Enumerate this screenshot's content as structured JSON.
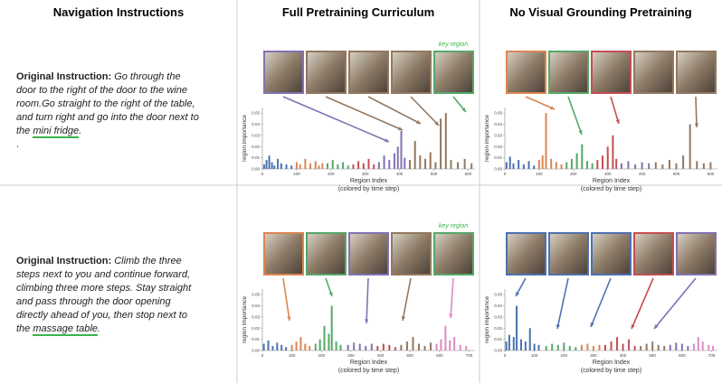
{
  "headers": [
    "Navigation Instructions",
    "Full Pretraining Curriculum",
    "No Visual Grounding Pretraining"
  ],
  "instructions": [
    {
      "label": "Original Instruction:",
      "text": "Go through the door to the right of the door to the wine room.Go straight to the right of the table, and turn right and go into the door next to the",
      "highlight": "mini fridge",
      "after": ".",
      "extra": "."
    },
    {
      "label": "Original Instruction:",
      "text": "Climb the three steps next to you and continue forward, climbing three more steps. Stay straight and pass through the door opening directly ahead of you, then stop next to the",
      "highlight": "massage table",
      "after": "."
    }
  ],
  "chart_data": [
    {
      "type": "bar",
      "ylabel": "region importance",
      "xlabel": "Region Index",
      "xlabel_note": "(colored by time step)",
      "annotation": "key region",
      "xlim": [
        0,
        620
      ],
      "xticks": [
        0,
        100,
        200,
        300,
        400,
        500,
        600
      ],
      "ylim": [
        0,
        0.055
      ],
      "yticks": [
        {
          "value": 0,
          "label": "0.00"
        },
        {
          "value": 0.01,
          "label": "0.01"
        },
        {
          "value": 0.02,
          "label": "0.02"
        },
        {
          "value": 0.03,
          "label": "0.03"
        },
        {
          "value": 0.04,
          "label": "0.04"
        },
        {
          "value": 0.05,
          "label": "0.05"
        }
      ],
      "series": [
        {
          "color": "#4c72b0",
          "x": [
            5,
            12,
            20,
            28,
            35,
            45,
            55,
            70,
            85
          ],
          "values": [
            0.004,
            0.008,
            0.012,
            0.006,
            0.003,
            0.009,
            0.005,
            0.004,
            0.003
          ]
        },
        {
          "color": "#dd8452",
          "x": [
            100,
            110,
            125,
            140,
            155,
            165,
            175
          ],
          "values": [
            0.006,
            0.004,
            0.009,
            0.005,
            0.007,
            0.003,
            0.005
          ]
        },
        {
          "color": "#55a868",
          "x": [
            190,
            205,
            220,
            235,
            250
          ],
          "values": [
            0.005,
            0.008,
            0.004,
            0.006,
            0.003
          ]
        },
        {
          "color": "#c44e52",
          "x": [
            265,
            280,
            295,
            310,
            325
          ],
          "values": [
            0.004,
            0.007,
            0.005,
            0.009,
            0.004
          ]
        },
        {
          "color": "#8172b3",
          "x": [
            340,
            355,
            370,
            385,
            395,
            405,
            415
          ],
          "values": [
            0.006,
            0.012,
            0.008,
            0.014,
            0.02,
            0.034,
            0.01
          ]
        },
        {
          "color": "#937860",
          "x": [
            430,
            445,
            460,
            475,
            490,
            505,
            520,
            535,
            550,
            570,
            590,
            610
          ],
          "values": [
            0.008,
            0.025,
            0.012,
            0.009,
            0.015,
            0.006,
            0.045,
            0.05,
            0.008,
            0.006,
            0.009,
            0.005
          ]
        }
      ]
    },
    {
      "type": "bar",
      "ylabel": "region importance",
      "xlabel": "Region Index",
      "xlabel_note": "(colored by time step)",
      "xlim": [
        0,
        620
      ],
      "xticks": [
        0,
        100,
        200,
        300,
        400,
        500,
        600
      ],
      "ylim": [
        0,
        0.055
      ],
      "yticks": [
        {
          "value": 0,
          "label": "0.00"
        },
        {
          "value": 0.01,
          "label": "0.01"
        },
        {
          "value": 0.02,
          "label": "0.02"
        },
        {
          "value": 0.03,
          "label": "0.03"
        },
        {
          "value": 0.04,
          "label": "0.04"
        },
        {
          "value": 0.05,
          "label": "0.05"
        }
      ],
      "series": [
        {
          "color": "#4c72b0",
          "x": [
            5,
            15,
            25,
            40,
            55,
            70,
            85
          ],
          "values": [
            0.006,
            0.011,
            0.005,
            0.008,
            0.004,
            0.007,
            0.003
          ]
        },
        {
          "color": "#dd8452",
          "x": [
            100,
            110,
            120,
            135,
            150,
            165
          ],
          "values": [
            0.008,
            0.012,
            0.05,
            0.009,
            0.006,
            0.004
          ]
        },
        {
          "color": "#55a868",
          "x": [
            180,
            195,
            210,
            225,
            240,
            255
          ],
          "values": [
            0.006,
            0.009,
            0.014,
            0.022,
            0.007,
            0.005
          ]
        },
        {
          "color": "#c44e52",
          "x": [
            270,
            285,
            300,
            315,
            325
          ],
          "values": [
            0.008,
            0.012,
            0.02,
            0.03,
            0.009
          ]
        },
        {
          "color": "#8172b3",
          "x": [
            340,
            360,
            380,
            400,
            420
          ],
          "values": [
            0.005,
            0.007,
            0.004,
            0.006,
            0.005
          ]
        },
        {
          "color": "#937860",
          "x": [
            440,
            460,
            480,
            500,
            520,
            540,
            560,
            580,
            600
          ],
          "values": [
            0.006,
            0.004,
            0.008,
            0.005,
            0.012,
            0.04,
            0.007,
            0.005,
            0.006
          ]
        }
      ]
    },
    {
      "type": "bar",
      "ylabel": "region importance",
      "xlabel": "Region Index",
      "xlabel_note": "(colored by time step)",
      "annotation": "key region",
      "xlim": [
        0,
        720
      ],
      "xticks": [
        0,
        100,
        200,
        300,
        400,
        500,
        600,
        700
      ],
      "ylim": [
        0,
        0.055
      ],
      "yticks": [
        {
          "value": 0,
          "label": "0.00"
        },
        {
          "value": 0.01,
          "label": "0.01"
        },
        {
          "value": 0.02,
          "label": "0.02"
        },
        {
          "value": 0.03,
          "label": "0.03"
        },
        {
          "value": 0.04,
          "label": "0.04"
        },
        {
          "value": 0.05,
          "label": "0.05"
        }
      ],
      "series": [
        {
          "color": "#4c72b0",
          "x": [
            5,
            20,
            35,
            50,
            65,
            80
          ],
          "values": [
            0.006,
            0.009,
            0.004,
            0.007,
            0.005,
            0.003
          ]
        },
        {
          "color": "#dd8452",
          "x": [
            100,
            115,
            130,
            145,
            160
          ],
          "values": [
            0.005,
            0.008,
            0.012,
            0.006,
            0.004
          ]
        },
        {
          "color": "#55a868",
          "x": [
            180,
            195,
            210,
            225,
            235,
            250,
            265
          ],
          "values": [
            0.006,
            0.01,
            0.022,
            0.015,
            0.04,
            0.008,
            0.005
          ]
        },
        {
          "color": "#8172b3",
          "x": [
            290,
            310,
            330,
            350,
            370
          ],
          "values": [
            0.005,
            0.007,
            0.006,
            0.004,
            0.006
          ]
        },
        {
          "color": "#c44e52",
          "x": [
            390,
            410,
            430,
            450
          ],
          "values": [
            0.004,
            0.006,
            0.005,
            0.003
          ]
        },
        {
          "color": "#937860",
          "x": [
            470,
            490,
            510,
            530,
            550,
            570
          ],
          "values": [
            0.005,
            0.008,
            0.012,
            0.006,
            0.004,
            0.007
          ]
        },
        {
          "color": "#da8bc3",
          "x": [
            590,
            605,
            620,
            635,
            650,
            670,
            690
          ],
          "values": [
            0.006,
            0.01,
            0.022,
            0.009,
            0.012,
            0.005,
            0.004
          ]
        }
      ]
    },
    {
      "type": "bar",
      "ylabel": "region importance",
      "xlabel": "Region Index",
      "xlabel_note": "(colored by time step)",
      "xlim": [
        0,
        720
      ],
      "xticks": [
        0,
        100,
        200,
        300,
        400,
        500,
        600,
        700
      ],
      "ylim": [
        0,
        0.055
      ],
      "yticks": [
        {
          "value": 0,
          "label": "0.00"
        },
        {
          "value": 0.01,
          "label": "0.01"
        },
        {
          "value": 0.02,
          "label": "0.02"
        },
        {
          "value": 0.03,
          "label": "0.03"
        },
        {
          "value": 0.04,
          "label": "0.04"
        },
        {
          "value": 0.05,
          "label": "0.05"
        }
      ],
      "series": [
        {
          "color": "#4c72b0",
          "x": [
            5,
            15,
            30,
            40,
            55,
            70,
            85,
            100,
            115
          ],
          "values": [
            0.008,
            0.014,
            0.012,
            0.04,
            0.01,
            0.008,
            0.02,
            0.006,
            0.005
          ]
        },
        {
          "color": "#55a868",
          "x": [
            140,
            160,
            180,
            200,
            220,
            240
          ],
          "values": [
            0.004,
            0.006,
            0.005,
            0.007,
            0.004,
            0.003
          ]
        },
        {
          "color": "#dd8452",
          "x": [
            260,
            280,
            300,
            320
          ],
          "values": [
            0.005,
            0.006,
            0.004,
            0.005
          ]
        },
        {
          "color": "#c44e52",
          "x": [
            340,
            360,
            380,
            400,
            420,
            440
          ],
          "values": [
            0.005,
            0.008,
            0.012,
            0.006,
            0.01,
            0.004
          ]
        },
        {
          "color": "#937860",
          "x": [
            460,
            480,
            500,
            520,
            540
          ],
          "values": [
            0.004,
            0.006,
            0.008,
            0.005,
            0.004
          ]
        },
        {
          "color": "#8172b3",
          "x": [
            560,
            580,
            600,
            620
          ],
          "values": [
            0.005,
            0.007,
            0.006,
            0.004
          ]
        },
        {
          "color": "#da8bc3",
          "x": [
            640,
            655,
            670,
            690,
            705
          ],
          "values": [
            0.006,
            0.012,
            0.008,
            0.005,
            0.004
          ]
        }
      ]
    }
  ]
}
